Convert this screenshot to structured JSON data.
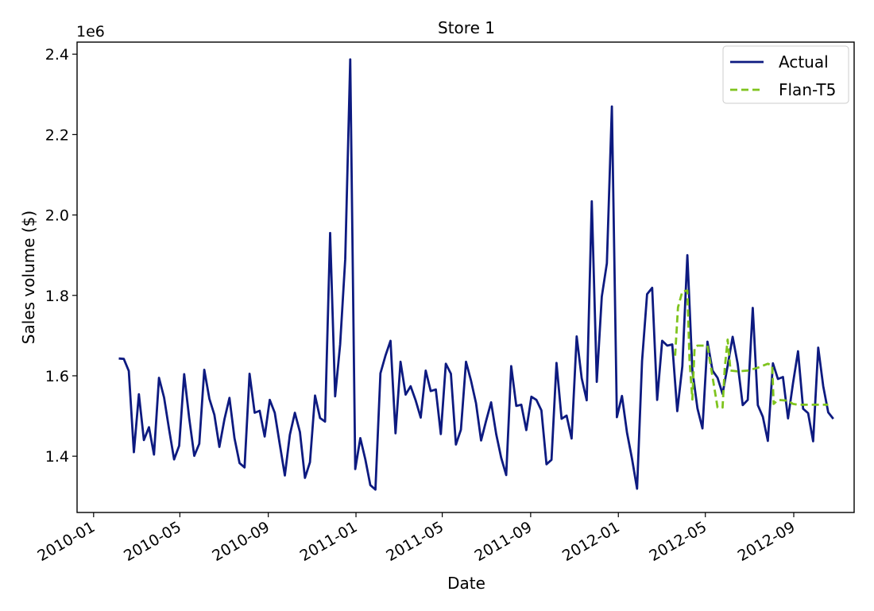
{
  "chart_data": {
    "type": "line",
    "title": "Store 1",
    "xlabel": "Date",
    "ylabel": "Sales volume ($)",
    "y_offset_text": "1e6",
    "ylim": [
      1.26,
      2.43
    ],
    "xlim": [
      "2009-12-09",
      "2012-11-24"
    ],
    "grid": false,
    "legend_position": "top-right",
    "x_ticks": [
      "2010-01",
      "2010-05",
      "2010-09",
      "2011-01",
      "2011-05",
      "2011-09",
      "2012-01",
      "2012-05",
      "2012-09"
    ],
    "y_ticks": [
      "1.4",
      "1.6",
      "1.8",
      "2.0",
      "2.2",
      "2.4"
    ],
    "series": [
      {
        "name": "Actual",
        "color": "#0d1a80",
        "style": "solid",
        "points": [
          [
            "2010-02-05",
            1.643
          ],
          [
            "2010-02-12",
            1.642
          ],
          [
            "2010-02-19",
            1.612
          ],
          [
            "2010-02-26",
            1.41
          ],
          [
            "2010-03-05",
            1.554
          ],
          [
            "2010-03-12",
            1.44
          ],
          [
            "2010-03-19",
            1.472
          ],
          [
            "2010-03-26",
            1.404
          ],
          [
            "2010-04-02",
            1.595
          ],
          [
            "2010-04-09",
            1.546
          ],
          [
            "2010-04-16",
            1.467
          ],
          [
            "2010-04-23",
            1.392
          ],
          [
            "2010-04-30",
            1.426
          ],
          [
            "2010-05-07",
            1.604
          ],
          [
            "2010-05-14",
            1.495
          ],
          [
            "2010-05-21",
            1.401
          ],
          [
            "2010-05-28",
            1.431
          ],
          [
            "2010-06-04",
            1.615
          ],
          [
            "2010-06-11",
            1.543
          ],
          [
            "2010-06-18",
            1.503
          ],
          [
            "2010-06-25",
            1.423
          ],
          [
            "2010-07-02",
            1.492
          ],
          [
            "2010-07-09",
            1.545
          ],
          [
            "2010-07-16",
            1.445
          ],
          [
            "2010-07-23",
            1.383
          ],
          [
            "2010-07-30",
            1.372
          ],
          [
            "2010-08-06",
            1.605
          ],
          [
            "2010-08-13",
            1.508
          ],
          [
            "2010-08-20",
            1.513
          ],
          [
            "2010-08-27",
            1.449
          ],
          [
            "2010-09-03",
            1.54
          ],
          [
            "2010-09-10",
            1.508
          ],
          [
            "2010-09-17",
            1.43
          ],
          [
            "2010-09-24",
            1.352
          ],
          [
            "2010-10-01",
            1.453
          ],
          [
            "2010-10-08",
            1.508
          ],
          [
            "2010-10-15",
            1.46
          ],
          [
            "2010-10-22",
            1.346
          ],
          [
            "2010-10-29",
            1.385
          ],
          [
            "2010-11-05",
            1.551
          ],
          [
            "2010-11-12",
            1.495
          ],
          [
            "2010-11-19",
            1.486
          ],
          [
            "2010-11-26",
            1.955
          ],
          [
            "2010-12-03",
            1.549
          ],
          [
            "2010-12-10",
            1.678
          ],
          [
            "2010-12-17",
            1.89
          ],
          [
            "2010-12-24",
            2.387
          ],
          [
            "2010-12-31",
            1.368
          ],
          [
            "2011-01-07",
            1.445
          ],
          [
            "2011-01-14",
            1.392
          ],
          [
            "2011-01-21",
            1.328
          ],
          [
            "2011-01-28",
            1.317
          ],
          [
            "2011-02-04",
            1.606
          ],
          [
            "2011-02-11",
            1.65
          ],
          [
            "2011-02-18",
            1.687
          ],
          [
            "2011-02-25",
            1.457
          ],
          [
            "2011-03-04",
            1.635
          ],
          [
            "2011-03-11",
            1.553
          ],
          [
            "2011-03-18",
            1.574
          ],
          [
            "2011-03-25",
            1.539
          ],
          [
            "2011-04-01",
            1.496
          ],
          [
            "2011-04-08",
            1.613
          ],
          [
            "2011-04-15",
            1.562
          ],
          [
            "2011-04-22",
            1.566
          ],
          [
            "2011-04-29",
            1.455
          ],
          [
            "2011-05-06",
            1.63
          ],
          [
            "2011-05-13",
            1.605
          ],
          [
            "2011-05-20",
            1.429
          ],
          [
            "2011-05-27",
            1.466
          ],
          [
            "2011-06-03",
            1.635
          ],
          [
            "2011-06-10",
            1.588
          ],
          [
            "2011-06-17",
            1.532
          ],
          [
            "2011-06-24",
            1.439
          ],
          [
            "2011-07-01",
            1.488
          ],
          [
            "2011-07-08",
            1.534
          ],
          [
            "2011-07-15",
            1.455
          ],
          [
            "2011-07-22",
            1.396
          ],
          [
            "2011-07-29",
            1.353
          ],
          [
            "2011-08-05",
            1.624
          ],
          [
            "2011-08-12",
            1.525
          ],
          [
            "2011-08-19",
            1.528
          ],
          [
            "2011-08-26",
            1.465
          ],
          [
            "2011-09-02",
            1.548
          ],
          [
            "2011-09-09",
            1.54
          ],
          [
            "2011-09-16",
            1.514
          ],
          [
            "2011-09-23",
            1.38
          ],
          [
            "2011-09-30",
            1.391
          ],
          [
            "2011-10-07",
            1.632
          ],
          [
            "2011-10-14",
            1.493
          ],
          [
            "2011-10-21",
            1.501
          ],
          [
            "2011-10-28",
            1.444
          ],
          [
            "2011-11-04",
            1.698
          ],
          [
            "2011-11-11",
            1.594
          ],
          [
            "2011-11-18",
            1.539
          ],
          [
            "2011-11-25",
            2.034
          ],
          [
            "2011-12-02",
            1.585
          ],
          [
            "2011-12-09",
            1.797
          ],
          [
            "2011-12-16",
            1.88
          ],
          [
            "2011-12-23",
            2.27
          ],
          [
            "2011-12-30",
            1.497
          ],
          [
            "2012-01-06",
            1.55
          ],
          [
            "2012-01-13",
            1.459
          ],
          [
            "2012-01-20",
            1.394
          ],
          [
            "2012-01-27",
            1.319
          ],
          [
            "2012-02-03",
            1.637
          ],
          [
            "2012-02-10",
            1.803
          ],
          [
            "2012-02-17",
            1.819
          ],
          [
            "2012-02-24",
            1.54
          ],
          [
            "2012-03-02",
            1.687
          ],
          [
            "2012-03-09",
            1.675
          ],
          [
            "2012-03-16",
            1.678
          ],
          [
            "2012-03-23",
            1.512
          ],
          [
            "2012-03-30",
            1.624
          ],
          [
            "2012-04-06",
            1.9
          ],
          [
            "2012-04-13",
            1.614
          ],
          [
            "2012-04-20",
            1.519
          ],
          [
            "2012-04-27",
            1.469
          ],
          [
            "2012-05-04",
            1.685
          ],
          [
            "2012-05-11",
            1.613
          ],
          [
            "2012-05-18",
            1.595
          ],
          [
            "2012-05-25",
            1.555
          ],
          [
            "2012-06-01",
            1.625
          ],
          [
            "2012-06-08",
            1.697
          ],
          [
            "2012-06-15",
            1.63
          ],
          [
            "2012-06-22",
            1.527
          ],
          [
            "2012-06-29",
            1.54
          ],
          [
            "2012-07-06",
            1.769
          ],
          [
            "2012-07-13",
            1.527
          ],
          [
            "2012-07-20",
            1.498
          ],
          [
            "2012-07-27",
            1.438
          ],
          [
            "2012-08-03",
            1.631
          ],
          [
            "2012-08-10",
            1.592
          ],
          [
            "2012-08-17",
            1.597
          ],
          [
            "2012-08-24",
            1.494
          ],
          [
            "2012-08-31",
            1.582
          ],
          [
            "2012-09-07",
            1.661
          ],
          [
            "2012-09-14",
            1.518
          ],
          [
            "2012-09-21",
            1.507
          ],
          [
            "2012-09-28",
            1.437
          ],
          [
            "2012-10-05",
            1.67
          ],
          [
            "2012-10-12",
            1.574
          ],
          [
            "2012-10-19",
            1.509
          ],
          [
            "2012-10-26",
            1.493
          ]
        ]
      },
      {
        "name": "Flan-T5",
        "color": "#7fc41e",
        "style": "dashed",
        "points": [
          [
            "2012-03-20",
            1.65
          ],
          [
            "2012-03-24",
            1.77
          ],
          [
            "2012-03-30",
            1.81
          ],
          [
            "2012-04-06",
            1.812
          ],
          [
            "2012-04-09",
            1.64
          ],
          [
            "2012-04-13",
            1.541
          ],
          [
            "2012-04-16",
            1.67
          ],
          [
            "2012-04-20",
            1.675
          ],
          [
            "2012-04-27",
            1.675
          ],
          [
            "2012-05-04",
            1.675
          ],
          [
            "2012-05-07",
            1.64
          ],
          [
            "2012-05-11",
            1.597
          ],
          [
            "2012-05-18",
            1.521
          ],
          [
            "2012-05-25",
            1.521
          ],
          [
            "2012-05-28",
            1.62
          ],
          [
            "2012-06-01",
            1.69
          ],
          [
            "2012-06-05",
            1.613
          ],
          [
            "2012-06-15",
            1.611
          ],
          [
            "2012-06-29",
            1.613
          ],
          [
            "2012-07-13",
            1.62
          ],
          [
            "2012-07-27",
            1.63
          ],
          [
            "2012-08-02",
            1.625
          ],
          [
            "2012-08-04",
            1.53
          ],
          [
            "2012-08-10",
            1.54
          ],
          [
            "2012-08-24",
            1.538
          ],
          [
            "2012-08-31",
            1.53
          ],
          [
            "2012-09-07",
            1.528
          ],
          [
            "2012-09-21",
            1.528
          ],
          [
            "2012-10-05",
            1.528
          ],
          [
            "2012-10-19",
            1.528
          ]
        ]
      }
    ]
  }
}
